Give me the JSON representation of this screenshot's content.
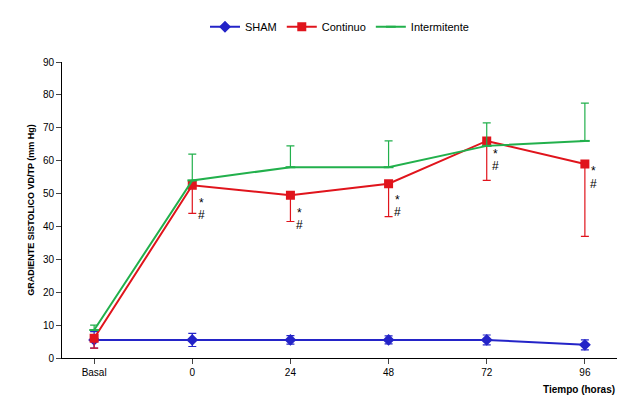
{
  "chart_data": {
    "type": "line",
    "x_label": "Tiempo (horas)",
    "y_label": "GRADIENTE SISTOLICO VD/TP (mm Hg)",
    "categories": [
      "Basal",
      "0",
      "24",
      "48",
      "72",
      "96"
    ],
    "ylim": [
      0,
      90
    ],
    "yticks": [
      0,
      10,
      20,
      30,
      40,
      50,
      60,
      70,
      80,
      90
    ],
    "grid": false,
    "legend": "top",
    "series": [
      {
        "name": "SHAM",
        "color": "#2424c8",
        "marker": "diamond",
        "values": [
          5.5,
          5.5,
          5.5,
          5.5,
          5.5,
          4
        ],
        "error_plus": [
          2.5,
          2,
          1.3,
          1.2,
          1.5,
          1.5
        ],
        "error_minus": [
          2.5,
          2,
          1.3,
          1.2,
          1.5,
          1.5
        ]
      },
      {
        "name": "Continuo",
        "color": "#e0141c",
        "marker": "square",
        "values": [
          6,
          52.5,
          49.5,
          53,
          66,
          59
        ],
        "error_plus": [
          0,
          0,
          0,
          0,
          0,
          0
        ],
        "error_minus": [
          3,
          8.5,
          8,
          10,
          12,
          22
        ]
      },
      {
        "name": "Intermitente",
        "color": "#22b04c",
        "marker": "line-ew",
        "values": [
          8.5,
          54,
          58,
          58,
          64.5,
          66
        ],
        "error_plus": [
          1.5,
          8,
          6.5,
          8,
          7,
          11.5
        ],
        "error_minus": [
          0,
          0,
          0,
          0,
          0,
          0
        ]
      }
    ],
    "annotations": [
      {
        "text": "*",
        "category": "0",
        "y": 47
      },
      {
        "text": "#",
        "category": "0",
        "y": 43.5
      },
      {
        "text": "*",
        "category": "24",
        "y": 44
      },
      {
        "text": "#",
        "category": "24",
        "y": 40.5
      },
      {
        "text": "*",
        "category": "48",
        "y": 48
      },
      {
        "text": "#",
        "category": "48",
        "y": 44.5
      },
      {
        "text": "*",
        "category": "72",
        "y": 62
      },
      {
        "text": "#",
        "category": "72",
        "y": 58.5
      },
      {
        "text": "*",
        "category": "96",
        "y": 57
      },
      {
        "text": "#",
        "category": "96",
        "y": 53
      }
    ]
  }
}
